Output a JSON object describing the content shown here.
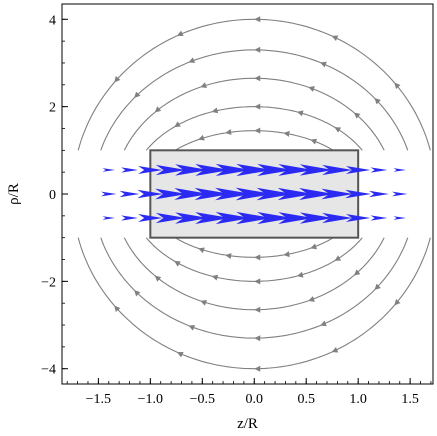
{
  "chart_data": {
    "type": "vector-field",
    "xlabel": "z/R",
    "ylabel": "ρ/R",
    "xlim": [
      -1.85,
      1.72
    ],
    "ylim": [
      -4.35,
      4.35
    ],
    "x_ticks": [
      -1.5,
      -1.0,
      -0.5,
      0.0,
      0.5,
      1.0,
      1.5
    ],
    "x_tick_labels": [
      "−1.5",
      "−1.0",
      "−0.5",
      "0.0",
      "0.5",
      "1.0",
      "1.5"
    ],
    "y_ticks": [
      -4,
      -2,
      0,
      2,
      4
    ],
    "y_tick_labels": [
      "−4",
      "−2",
      "0",
      "2",
      "4"
    ],
    "magnet_region": {
      "z": [
        -1.0,
        1.0
      ],
      "rho": [
        -1.0,
        1.0
      ]
    },
    "field_vectors": {
      "rows_rho": [
        0.55,
        0.0,
        -0.55
      ],
      "z_values": [
        -1.4,
        -1.2,
        -1.0,
        -0.8,
        -0.6,
        -0.4,
        -0.2,
        0.0,
        0.2,
        0.4,
        0.6,
        0.8,
        1.0,
        1.2,
        1.4
      ],
      "magnitudes": [
        [
          0.15,
          0.3,
          0.55,
          0.75,
          0.85,
          0.9,
          0.92,
          0.93,
          0.92,
          0.9,
          0.85,
          0.75,
          0.55,
          0.3,
          0.15
        ],
        [
          0.25,
          0.4,
          0.6,
          0.8,
          0.9,
          0.94,
          0.96,
          0.97,
          0.96,
          0.94,
          0.9,
          0.8,
          0.6,
          0.4,
          0.25
        ],
        [
          0.15,
          0.3,
          0.55,
          0.75,
          0.85,
          0.9,
          0.92,
          0.93,
          0.92,
          0.9,
          0.85,
          0.75,
          0.55,
          0.3,
          0.15
        ]
      ]
    },
    "field_lines_semi_axes": {
      "a": [
        1.05,
        1.2,
        1.35,
        1.55,
        1.75
      ],
      "b": [
        1.45,
        2.0,
        2.65,
        3.3,
        4.0
      ]
    },
    "colors": {
      "field_arrow": "#2a2af2",
      "field_line": "#808080",
      "magnet_fill": "#e6e6e6",
      "magnet_edge": "#555555"
    }
  }
}
